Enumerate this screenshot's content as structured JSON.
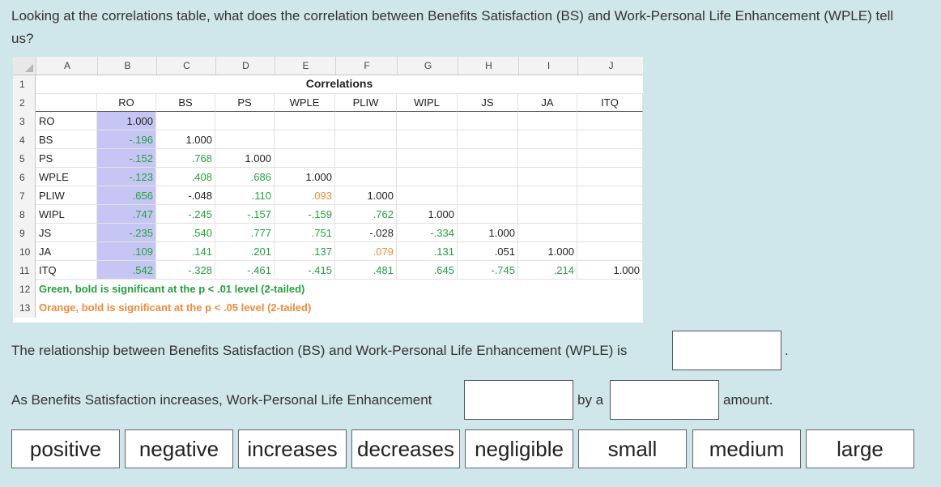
{
  "question": "Looking at the correlations table, what does the correlation between Benefits Satisfaction (BS) and Work-Personal Life Enhancement (WPLE) tell us?",
  "sheet": {
    "columns": [
      "A",
      "B",
      "C",
      "D",
      "E",
      "F",
      "G",
      "H",
      "I",
      "J"
    ],
    "rows": [
      "1",
      "2",
      "3",
      "4",
      "5",
      "6",
      "7",
      "8",
      "9",
      "10",
      "11",
      "12",
      "13"
    ],
    "title": "Correlations",
    "headers": [
      "RO",
      "BS",
      "PS",
      "WPLE",
      "PLIW",
      "WIPL",
      "JS",
      "JA",
      "ITQ"
    ],
    "labels": [
      "RO",
      "BS",
      "PS",
      "WPLE",
      "PLIW",
      "WIPL",
      "JS",
      "JA",
      "ITQ"
    ],
    "matrix": [
      [
        {
          "v": "1.000",
          "c": ""
        }
      ],
      [
        {
          "v": "-.196",
          "c": "g"
        },
        {
          "v": "1.000",
          "c": ""
        }
      ],
      [
        {
          "v": "-.152",
          "c": "g"
        },
        {
          "v": ".768",
          "c": "g"
        },
        {
          "v": "1.000",
          "c": ""
        }
      ],
      [
        {
          "v": "-.123",
          "c": "g"
        },
        {
          "v": ".408",
          "c": "g"
        },
        {
          "v": ".686",
          "c": "g"
        },
        {
          "v": "1.000",
          "c": ""
        }
      ],
      [
        {
          "v": ".656",
          "c": "g"
        },
        {
          "v": "-.048",
          "c": ""
        },
        {
          "v": ".110",
          "c": "g"
        },
        {
          "v": ".093",
          "c": "o"
        },
        {
          "v": "1.000",
          "c": ""
        }
      ],
      [
        {
          "v": ".747",
          "c": "g"
        },
        {
          "v": "-.245",
          "c": "g"
        },
        {
          "v": "-.157",
          "c": "g"
        },
        {
          "v": "-.159",
          "c": "g"
        },
        {
          "v": ".762",
          "c": "g"
        },
        {
          "v": "1.000",
          "c": ""
        }
      ],
      [
        {
          "v": "-.235",
          "c": "g"
        },
        {
          "v": ".540",
          "c": "g"
        },
        {
          "v": ".777",
          "c": "g"
        },
        {
          "v": ".751",
          "c": "g"
        },
        {
          "v": "-.028",
          "c": ""
        },
        {
          "v": "-.334",
          "c": "g"
        },
        {
          "v": "1.000",
          "c": ""
        }
      ],
      [
        {
          "v": ".109",
          "c": "g"
        },
        {
          "v": ".141",
          "c": "g"
        },
        {
          "v": ".201",
          "c": "g"
        },
        {
          "v": ".137",
          "c": "g"
        },
        {
          "v": ".079",
          "c": "o"
        },
        {
          "v": ".131",
          "c": "g"
        },
        {
          "v": ".051",
          "c": ""
        },
        {
          "v": "1.000",
          "c": ""
        }
      ],
      [
        {
          "v": ".542",
          "c": "g"
        },
        {
          "v": "-.328",
          "c": "g"
        },
        {
          "v": "-.461",
          "c": "g"
        },
        {
          "v": "-.415",
          "c": "g"
        },
        {
          "v": ".481",
          "c": "g"
        },
        {
          "v": ".645",
          "c": "g"
        },
        {
          "v": "-.745",
          "c": "g"
        },
        {
          "v": ".214",
          "c": "g"
        },
        {
          "v": "1.000",
          "c": ""
        }
      ]
    ],
    "note_green": "Green, bold is significant at the p < .01 level (2-tailed)",
    "note_orange": "Orange, bold is significant at the p < .05 level (2-tailed)"
  },
  "sentence1": {
    "text": "The relationship between Benefits Satisfaction (BS) and Work-Personal Life Enhancement (WPLE) is",
    "end": "."
  },
  "sentence2": {
    "part1": "As Benefits Satisfaction increases, Work-Personal Life Enhancement",
    "part2": "by a",
    "part3": "amount."
  },
  "choices": [
    "positive",
    "negative",
    "increases",
    "decreases",
    "negligible",
    "small",
    "medium",
    "large"
  ],
  "colors": {
    "background": "#cfe6ea",
    "green": "#23a13d",
    "orange": "#f08a3a",
    "label_fill": "#c6c6f4"
  }
}
